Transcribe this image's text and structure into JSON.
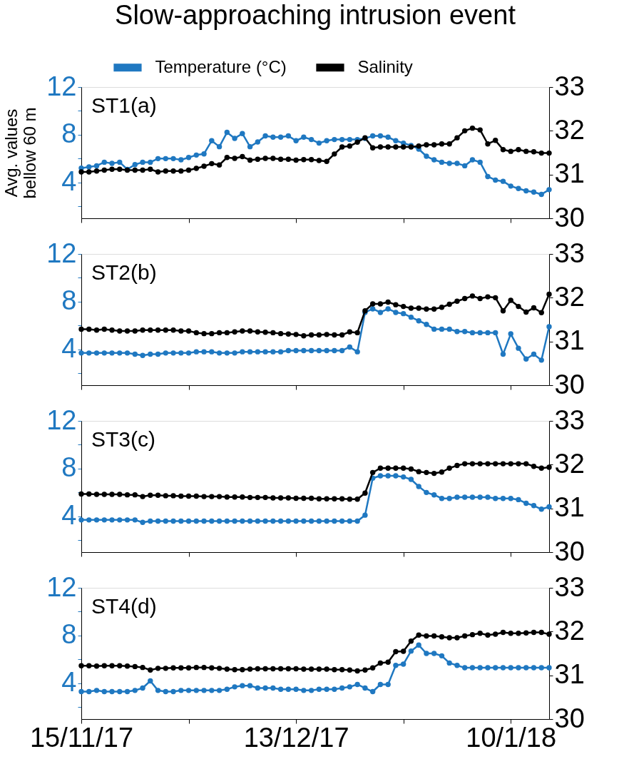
{
  "chart_data": [
    {
      "type": "line",
      "title": "Slow-approaching intrusion event",
      "ylabel": "Avg. values bellow 60 m",
      "annotations": [
        "ST1(a)"
      ],
      "legend": "top",
      "marker": "circle",
      "line_style": "solid",
      "tick_labels": "y",
      "x": [
        "2017-11-15",
        "2017-11-16",
        "2017-11-17",
        "2017-11-18",
        "2017-11-19",
        "2017-11-20",
        "2017-11-21",
        "2017-11-22",
        "2017-11-23",
        "2017-11-24",
        "2017-11-25",
        "2017-11-26",
        "2017-11-27",
        "2017-11-28",
        "2017-11-29",
        "2017-11-30",
        "2017-12-01",
        "2017-12-02",
        "2017-12-03",
        "2017-12-04",
        "2017-12-05",
        "2017-12-06",
        "2017-12-07",
        "2017-12-08",
        "2017-12-09",
        "2017-12-10",
        "2017-12-11",
        "2017-12-12",
        "2017-12-13",
        "2017-12-14",
        "2017-12-15",
        "2017-12-16",
        "2017-12-17",
        "2017-12-18",
        "2017-12-19",
        "2017-12-20",
        "2017-12-21",
        "2017-12-22",
        "2017-12-23",
        "2017-12-24",
        "2017-12-25",
        "2017-12-26",
        "2017-12-27",
        "2017-12-28",
        "2017-12-29",
        "2017-12-30",
        "2017-12-31",
        "2018-01-01",
        "2018-01-02",
        "2018-01-03",
        "2018-01-04",
        "2018-01-05",
        "2018-01-06",
        "2018-01-07",
        "2018-01-08",
        "2018-01-09",
        "2018-01-10",
        "2018-01-11",
        "2018-01-12",
        "2018-01-13",
        "2018-01-14",
        "2018-01-15"
      ],
      "xlim": [
        "2017-11-15",
        "2018-01-15"
      ],
      "xticks": [
        {
          "value": "2017-11-15",
          "label": null
        },
        {
          "value": "2017-11-29",
          "label": null
        },
        {
          "value": "2017-12-13",
          "label": null
        },
        {
          "value": "2017-12-27",
          "label": null
        },
        {
          "value": "2018-01-10",
          "label": null
        }
      ],
      "ylim": [
        1,
        12
      ],
      "yticks": [
        {
          "value": 2,
          "label": null
        },
        4,
        {
          "value": 6,
          "label": null
        },
        8,
        {
          "value": 10,
          "label": null
        },
        12
      ],
      "y2lim": [
        30,
        33
      ],
      "y2ticks": [
        30,
        31,
        32,
        33
      ],
      "series": [
        {
          "name": "Temperature (°C)",
          "color": "#1f78c1",
          "values": [
            5.2,
            5.3,
            5.4,
            5.7,
            5.6,
            5.7,
            5.1,
            5.5,
            5.7,
            5.7,
            6.0,
            6.0,
            6.0,
            5.9,
            6.1,
            6.3,
            6.4,
            7.5,
            7.0,
            8.2,
            7.7,
            8.1,
            7.0,
            7.4,
            7.9,
            7.8,
            7.8,
            7.9,
            7.5,
            7.8,
            7.6,
            7.3,
            7.5,
            7.6,
            7.6,
            7.6,
            7.6,
            7.7,
            7.9,
            7.9,
            7.8,
            7.5,
            7.3,
            7.1,
            6.8,
            6.2,
            5.9,
            5.7,
            5.6,
            5.6,
            5.4,
            5.9,
            5.7,
            4.5,
            4.2,
            4.1,
            3.7,
            3.5,
            3.3,
            3.2,
            3.0,
            3.4
          ]
        },
        {
          "name": "Salinity",
          "color": "#000000",
          "axis": "y2",
          "values": [
            31.06,
            31.06,
            31.08,
            31.1,
            31.12,
            31.12,
            31.1,
            31.1,
            31.1,
            31.12,
            31.06,
            31.08,
            31.08,
            31.08,
            31.1,
            31.14,
            31.19,
            31.25,
            31.22,
            31.39,
            31.37,
            31.41,
            31.33,
            31.35,
            31.37,
            31.37,
            31.35,
            31.35,
            31.33,
            31.34,
            31.34,
            31.32,
            31.3,
            31.47,
            31.63,
            31.65,
            31.74,
            31.84,
            31.61,
            31.63,
            31.63,
            31.63,
            31.63,
            31.63,
            31.65,
            31.68,
            31.68,
            31.7,
            31.7,
            31.84,
            32.0,
            32.06,
            32.02,
            31.7,
            31.78,
            31.57,
            31.53,
            31.57,
            31.53,
            31.52,
            31.49,
            31.49
          ]
        }
      ]
    },
    {
      "type": "line",
      "annotations": [
        "ST2(b)"
      ],
      "marker": "circle",
      "line_style": "solid",
      "tick_labels": "y",
      "x": [
        "2017-11-15",
        "2017-11-16",
        "2017-11-17",
        "2017-11-18",
        "2017-11-19",
        "2017-11-20",
        "2017-11-21",
        "2017-11-22",
        "2017-11-23",
        "2017-11-24",
        "2017-11-25",
        "2017-11-26",
        "2017-11-27",
        "2017-11-28",
        "2017-11-29",
        "2017-11-30",
        "2017-12-01",
        "2017-12-02",
        "2017-12-03",
        "2017-12-04",
        "2017-12-05",
        "2017-12-06",
        "2017-12-07",
        "2017-12-08",
        "2017-12-09",
        "2017-12-10",
        "2017-12-11",
        "2017-12-12",
        "2017-12-13",
        "2017-12-14",
        "2017-12-15",
        "2017-12-16",
        "2017-12-17",
        "2017-12-18",
        "2017-12-19",
        "2017-12-20",
        "2017-12-21",
        "2017-12-22",
        "2017-12-23",
        "2017-12-24",
        "2017-12-25",
        "2017-12-26",
        "2017-12-27",
        "2017-12-28",
        "2017-12-29",
        "2017-12-30",
        "2017-12-31",
        "2018-01-01",
        "2018-01-02",
        "2018-01-03",
        "2018-01-04",
        "2018-01-05",
        "2018-01-06",
        "2018-01-07",
        "2018-01-08",
        "2018-01-09",
        "2018-01-10",
        "2018-01-11",
        "2018-01-12",
        "2018-01-13",
        "2018-01-14",
        "2018-01-15"
      ],
      "xlim": [
        "2017-11-15",
        "2018-01-15"
      ],
      "xticks": [
        {
          "value": "2017-11-15",
          "label": null
        },
        {
          "value": "2017-11-29",
          "label": null
        },
        {
          "value": "2017-12-13",
          "label": null
        },
        {
          "value": "2017-12-27",
          "label": null
        },
        {
          "value": "2018-01-10",
          "label": null
        }
      ],
      "ylim": [
        1,
        12
      ],
      "yticks": [
        {
          "value": 2,
          "label": null
        },
        4,
        {
          "value": 6,
          "label": null
        },
        8,
        {
          "value": 10,
          "label": null
        },
        12
      ],
      "y2lim": [
        30,
        33
      ],
      "y2ticks": [
        30,
        31,
        32,
        33
      ],
      "series": [
        {
          "color": "#1f78c1",
          "values": [
            3.7,
            3.7,
            3.7,
            3.7,
            3.7,
            3.7,
            3.7,
            3.6,
            3.5,
            3.6,
            3.6,
            3.7,
            3.7,
            3.7,
            3.7,
            3.8,
            3.8,
            3.8,
            3.7,
            3.7,
            3.7,
            3.8,
            3.8,
            3.8,
            3.8,
            3.8,
            3.8,
            3.9,
            3.9,
            3.9,
            3.9,
            3.9,
            3.9,
            3.9,
            3.9,
            4.2,
            3.8,
            7.1,
            7.4,
            7.1,
            7.4,
            7.1,
            7.0,
            6.7,
            6.4,
            6.1,
            5.7,
            5.7,
            5.7,
            5.5,
            5.5,
            5.4,
            5.4,
            5.4,
            5.4,
            3.6,
            5.3,
            4.1,
            3.2,
            3.6,
            3.1,
            5.9
          ]
        },
        {
          "color": "#000000",
          "axis": "y2",
          "values": [
            31.28,
            31.28,
            31.26,
            31.28,
            31.26,
            31.24,
            31.24,
            31.24,
            31.26,
            31.26,
            31.26,
            31.26,
            31.26,
            31.24,
            31.24,
            31.2,
            31.18,
            31.18,
            31.2,
            31.2,
            31.22,
            31.24,
            31.24,
            31.22,
            31.21,
            31.2,
            31.18,
            31.17,
            31.16,
            31.13,
            31.15,
            31.15,
            31.16,
            31.15,
            31.15,
            31.22,
            31.2,
            31.7,
            31.86,
            31.86,
            31.9,
            31.84,
            31.8,
            31.76,
            31.76,
            31.74,
            31.74,
            31.78,
            31.85,
            31.92,
            31.98,
            32.04,
            31.98,
            32.02,
            32.0,
            31.7,
            31.94,
            31.8,
            31.67,
            31.77,
            31.66,
            32.08
          ]
        }
      ]
    },
    {
      "type": "line",
      "annotations": [
        "ST3(c)"
      ],
      "marker": "circle",
      "line_style": "solid",
      "tick_labels": "y",
      "x": [
        "2017-11-15",
        "2017-11-16",
        "2017-11-17",
        "2017-11-18",
        "2017-11-19",
        "2017-11-20",
        "2017-11-21",
        "2017-11-22",
        "2017-11-23",
        "2017-11-24",
        "2017-11-25",
        "2017-11-26",
        "2017-11-27",
        "2017-11-28",
        "2017-11-29",
        "2017-11-30",
        "2017-12-01",
        "2017-12-02",
        "2017-12-03",
        "2017-12-04",
        "2017-12-05",
        "2017-12-06",
        "2017-12-07",
        "2017-12-08",
        "2017-12-09",
        "2017-12-10",
        "2017-12-11",
        "2017-12-12",
        "2017-12-13",
        "2017-12-14",
        "2017-12-15",
        "2017-12-16",
        "2017-12-17",
        "2017-12-18",
        "2017-12-19",
        "2017-12-20",
        "2017-12-21",
        "2017-12-22",
        "2017-12-23",
        "2017-12-24",
        "2017-12-25",
        "2017-12-26",
        "2017-12-27",
        "2017-12-28",
        "2017-12-29",
        "2017-12-30",
        "2017-12-31",
        "2018-01-01",
        "2018-01-02",
        "2018-01-03",
        "2018-01-04",
        "2018-01-05",
        "2018-01-06",
        "2018-01-07",
        "2018-01-08",
        "2018-01-09",
        "2018-01-10",
        "2018-01-11",
        "2018-01-12",
        "2018-01-13",
        "2018-01-14",
        "2018-01-15"
      ],
      "xlim": [
        "2017-11-15",
        "2018-01-15"
      ],
      "xticks": [
        {
          "value": "2017-11-15",
          "label": null
        },
        {
          "value": "2017-11-29",
          "label": null
        },
        {
          "value": "2017-12-13",
          "label": null
        },
        {
          "value": "2017-12-27",
          "label": null
        },
        {
          "value": "2018-01-10",
          "label": null
        }
      ],
      "ylim": [
        1,
        12
      ],
      "yticks": [
        {
          "value": 2,
          "label": null
        },
        4,
        {
          "value": 6,
          "label": null
        },
        8,
        {
          "value": 10,
          "label": null
        },
        12
      ],
      "y2lim": [
        30,
        33
      ],
      "y2ticks": [
        30,
        31,
        32,
        33
      ],
      "series": [
        {
          "color": "#1f78c1",
          "values": [
            3.7,
            3.7,
            3.7,
            3.7,
            3.7,
            3.7,
            3.7,
            3.7,
            3.5,
            3.6,
            3.6,
            3.6,
            3.6,
            3.6,
            3.6,
            3.6,
            3.6,
            3.6,
            3.6,
            3.6,
            3.6,
            3.6,
            3.6,
            3.6,
            3.6,
            3.6,
            3.6,
            3.6,
            3.6,
            3.6,
            3.6,
            3.6,
            3.6,
            3.6,
            3.6,
            3.6,
            3.6,
            4.1,
            7.2,
            7.4,
            7.4,
            7.4,
            7.3,
            7.1,
            6.5,
            6.0,
            5.8,
            5.5,
            5.5,
            5.6,
            5.6,
            5.6,
            5.6,
            5.6,
            5.5,
            5.5,
            5.5,
            5.4,
            5.1,
            4.9,
            4.6,
            4.8
          ]
        },
        {
          "color": "#000000",
          "axis": "y2",
          "values": [
            31.33,
            31.33,
            31.32,
            31.32,
            31.32,
            31.32,
            31.31,
            31.31,
            31.27,
            31.3,
            31.3,
            31.29,
            31.29,
            31.28,
            31.28,
            31.28,
            31.27,
            31.27,
            31.27,
            31.26,
            31.26,
            31.26,
            31.25,
            31.25,
            31.25,
            31.24,
            31.24,
            31.24,
            31.23,
            31.23,
            31.23,
            31.22,
            31.22,
            31.22,
            31.22,
            31.21,
            31.21,
            31.35,
            31.82,
            31.92,
            31.92,
            31.92,
            31.92,
            31.9,
            31.84,
            31.82,
            31.8,
            31.83,
            31.92,
            31.98,
            32.02,
            32.02,
            32.02,
            32.02,
            32.02,
            32.02,
            32.02,
            32.02,
            32.02,
            31.96,
            31.92,
            31.94
          ]
        }
      ]
    },
    {
      "type": "line",
      "annotations": [
        "ST4(d)"
      ],
      "marker": "circle",
      "line_style": "solid",
      "x": [
        "2017-11-15",
        "2017-11-16",
        "2017-11-17",
        "2017-11-18",
        "2017-11-19",
        "2017-11-20",
        "2017-11-21",
        "2017-11-22",
        "2017-11-23",
        "2017-11-24",
        "2017-11-25",
        "2017-11-26",
        "2017-11-27",
        "2017-11-28",
        "2017-11-29",
        "2017-11-30",
        "2017-12-01",
        "2017-12-02",
        "2017-12-03",
        "2017-12-04",
        "2017-12-05",
        "2017-12-06",
        "2017-12-07",
        "2017-12-08",
        "2017-12-09",
        "2017-12-10",
        "2017-12-11",
        "2017-12-12",
        "2017-12-13",
        "2017-12-14",
        "2017-12-15",
        "2017-12-16",
        "2017-12-17",
        "2017-12-18",
        "2017-12-19",
        "2017-12-20",
        "2017-12-21",
        "2017-12-22",
        "2017-12-23",
        "2017-12-24",
        "2017-12-25",
        "2017-12-26",
        "2017-12-27",
        "2017-12-28",
        "2017-12-29",
        "2017-12-30",
        "2017-12-31",
        "2018-01-01",
        "2018-01-02",
        "2018-01-03",
        "2018-01-04",
        "2018-01-05",
        "2018-01-06",
        "2018-01-07",
        "2018-01-08",
        "2018-01-09",
        "2018-01-10",
        "2018-01-11",
        "2018-01-12",
        "2018-01-13",
        "2018-01-14",
        "2018-01-15"
      ],
      "xlim": [
        "2017-11-15",
        "2018-01-15"
      ],
      "xticks": [
        {
          "value": "2017-11-15",
          "label": "15/11/17"
        },
        {
          "value": "2017-11-29",
          "label": null
        },
        {
          "value": "2017-12-13",
          "label": "13/12/17"
        },
        {
          "value": "2017-12-27",
          "label": null
        },
        {
          "value": "2018-01-10",
          "label": "10/1/18"
        }
      ],
      "ylim": [
        1,
        12
      ],
      "yticks": [
        {
          "value": 2,
          "label": null
        },
        4,
        {
          "value": 6,
          "label": null
        },
        8,
        {
          "value": 10,
          "label": null
        },
        12
      ],
      "y2lim": [
        30,
        33
      ],
      "y2ticks": [
        30,
        31,
        32,
        33
      ],
      "series": [
        {
          "color": "#1f78c1",
          "values": [
            3.3,
            3.3,
            3.4,
            3.3,
            3.3,
            3.3,
            3.3,
            3.4,
            3.6,
            4.2,
            3.4,
            3.3,
            3.3,
            3.4,
            3.4,
            3.4,
            3.4,
            3.4,
            3.4,
            3.5,
            3.7,
            3.8,
            3.8,
            3.6,
            3.6,
            3.6,
            3.5,
            3.5,
            3.5,
            3.4,
            3.4,
            3.5,
            3.5,
            3.5,
            3.6,
            3.7,
            3.9,
            3.6,
            3.3,
            3.9,
            3.9,
            5.5,
            5.6,
            6.7,
            7.2,
            6.5,
            6.5,
            6.3,
            5.7,
            5.5,
            5.3,
            5.3,
            5.3,
            5.3,
            5.3,
            5.3,
            5.3,
            5.3,
            5.3,
            5.3,
            5.3,
            5.3
          ]
        },
        {
          "color": "#000000",
          "axis": "y2",
          "values": [
            31.22,
            31.22,
            31.21,
            31.22,
            31.22,
            31.22,
            31.21,
            31.2,
            31.18,
            31.12,
            31.16,
            31.16,
            31.17,
            31.17,
            31.17,
            31.18,
            31.18,
            31.17,
            31.16,
            31.14,
            31.13,
            31.13,
            31.14,
            31.15,
            31.15,
            31.15,
            31.15,
            31.15,
            31.15,
            31.14,
            31.14,
            31.14,
            31.14,
            31.13,
            31.13,
            31.12,
            31.1,
            31.12,
            31.17,
            31.28,
            31.3,
            31.54,
            31.55,
            31.78,
            31.92,
            31.9,
            31.9,
            31.88,
            31.86,
            31.86,
            31.9,
            31.93,
            31.96,
            31.92,
            31.94,
            31.98,
            31.96,
            31.96,
            31.97,
            31.98,
            31.98,
            31.94
          ]
        }
      ]
    }
  ]
}
